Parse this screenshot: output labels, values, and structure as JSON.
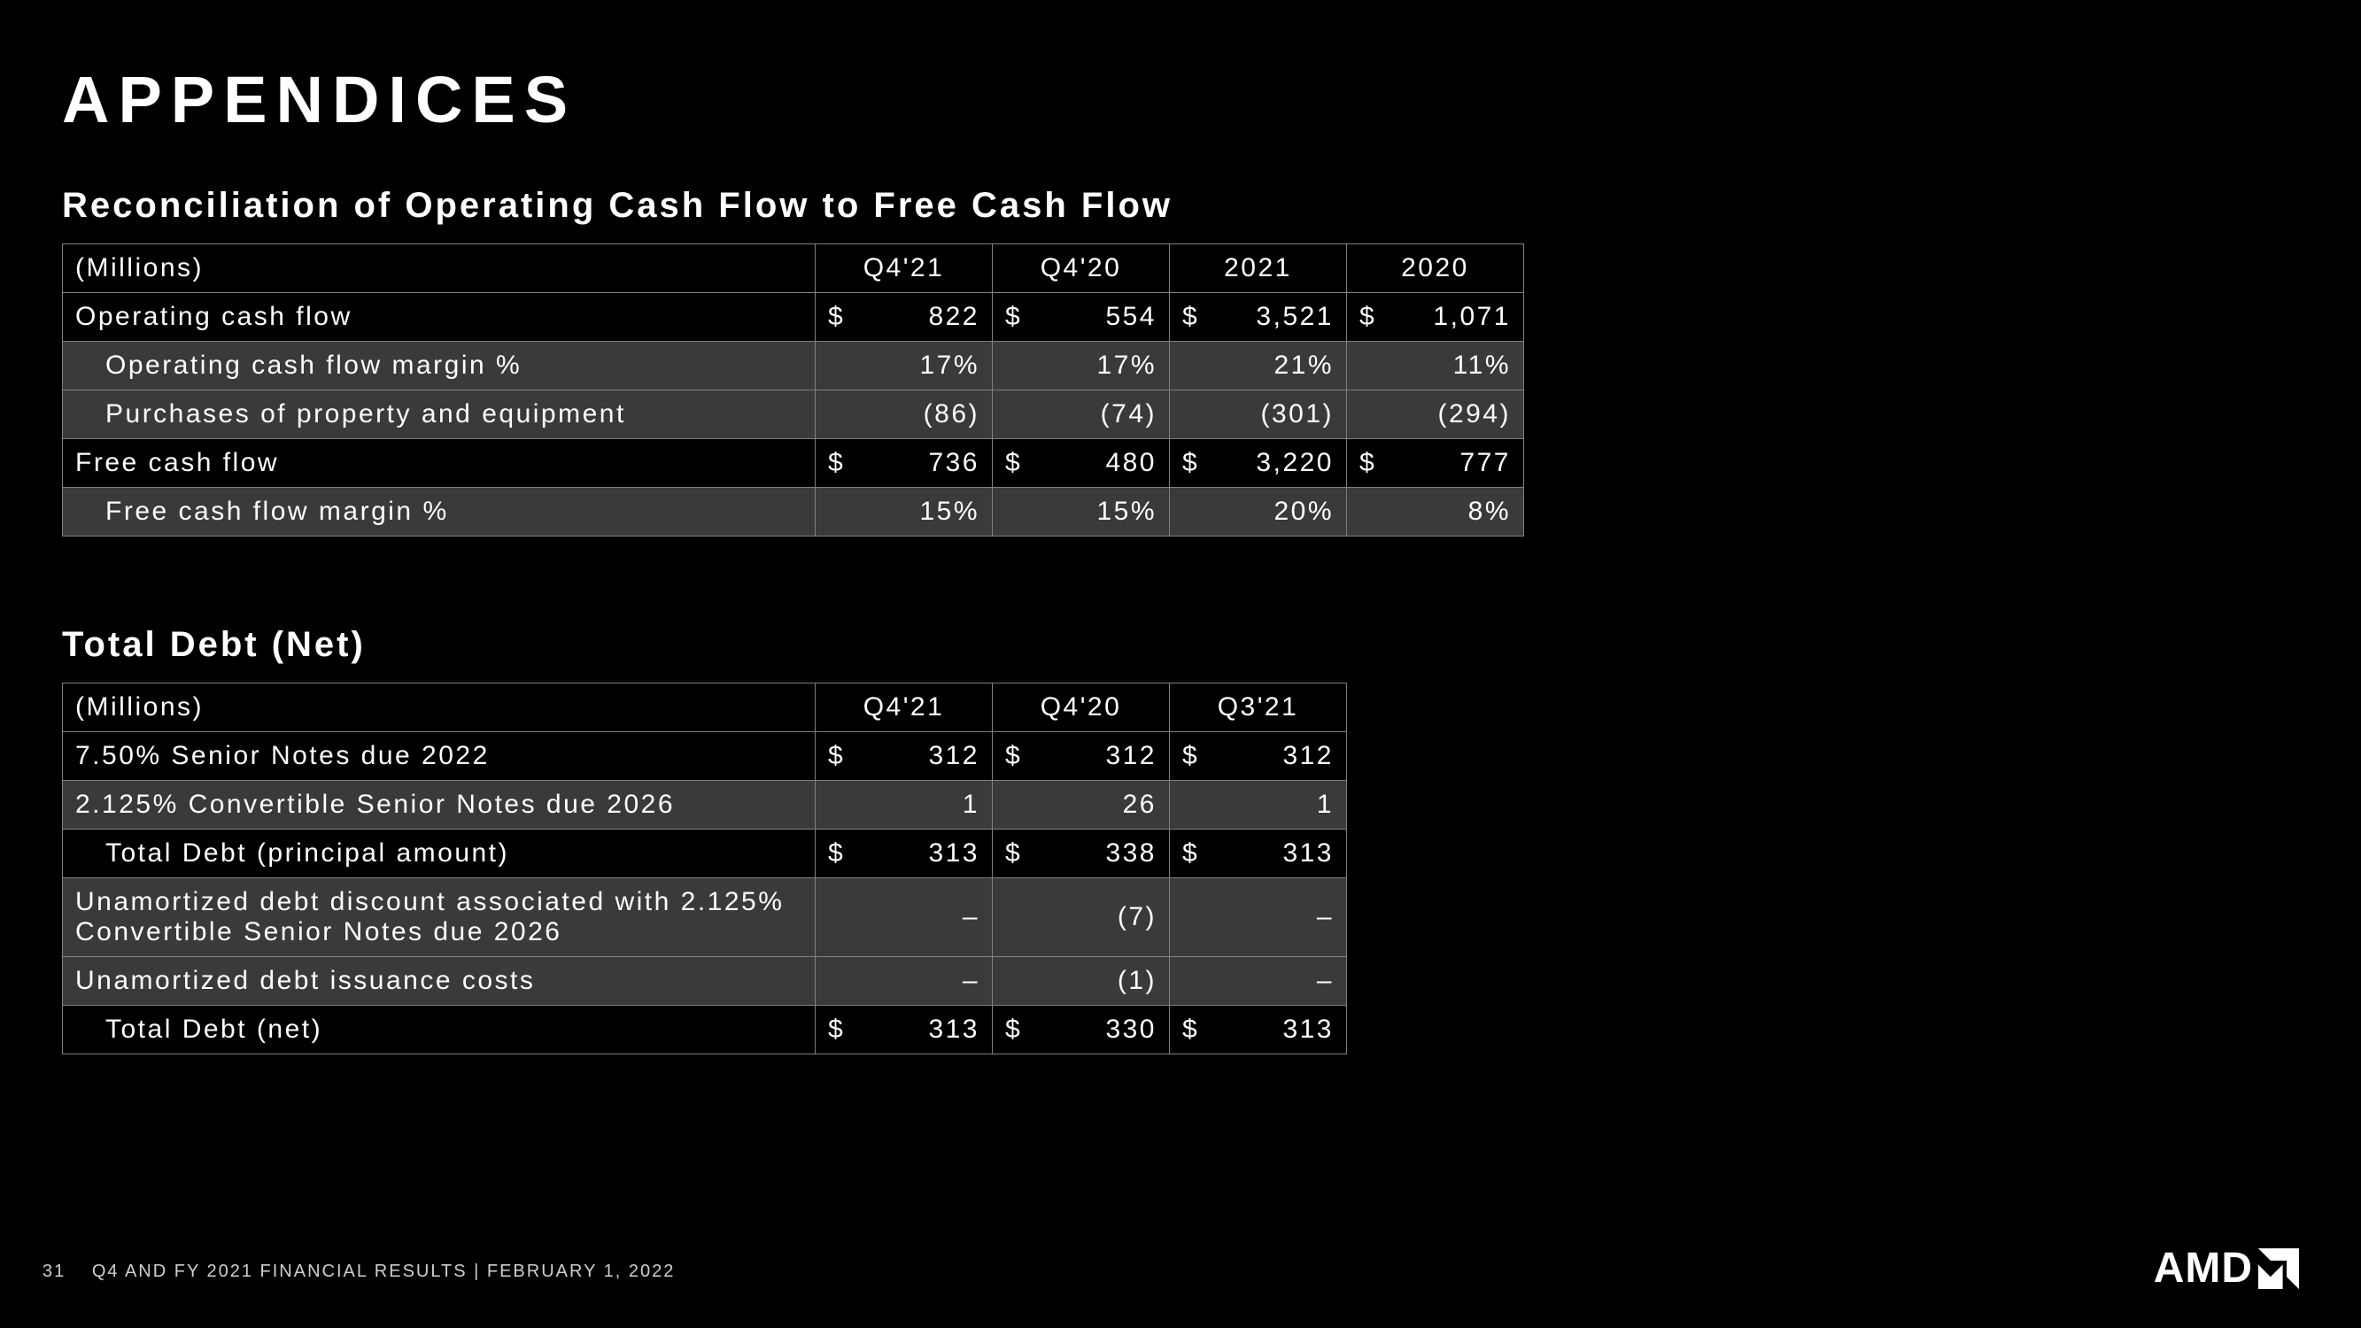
{
  "colors": {
    "background": "#000000",
    "text": "#ffffff",
    "border": "#808080",
    "shaded_row": "#3a3a3a",
    "footer_text": "#cfcfcf"
  },
  "title": "APPENDICES",
  "table1": {
    "title": "Reconciliation of Operating Cash Flow to Free Cash Flow",
    "header_label": "(Millions)",
    "columns": [
      "Q4'21",
      "Q4'20",
      "2021",
      "2020"
    ],
    "rows": [
      {
        "label": "Operating cash flow",
        "indent": 0,
        "shaded": false,
        "cells": [
          {
            "sym": "$",
            "val": "822"
          },
          {
            "sym": "$",
            "val": "554"
          },
          {
            "sym": "$",
            "val": "3,521"
          },
          {
            "sym": "$",
            "val": "1,071"
          }
        ]
      },
      {
        "label": "Operating cash flow margin %",
        "indent": 1,
        "shaded": true,
        "cells": [
          {
            "sym": "",
            "val": "17%"
          },
          {
            "sym": "",
            "val": "17%"
          },
          {
            "sym": "",
            "val": "21%"
          },
          {
            "sym": "",
            "val": "11%"
          }
        ]
      },
      {
        "label": "Purchases of property and equipment",
        "indent": 1,
        "shaded": true,
        "cells": [
          {
            "sym": "",
            "val": "(86)"
          },
          {
            "sym": "",
            "val": "(74)"
          },
          {
            "sym": "",
            "val": "(301)"
          },
          {
            "sym": "",
            "val": "(294)"
          }
        ]
      },
      {
        "label": "Free cash flow",
        "indent": 0,
        "shaded": false,
        "cells": [
          {
            "sym": "$",
            "val": "736"
          },
          {
            "sym": "$",
            "val": "480"
          },
          {
            "sym": "$",
            "val": "3,220"
          },
          {
            "sym": "$",
            "val": "777"
          }
        ]
      },
      {
        "label": "Free cash flow margin %",
        "indent": 1,
        "shaded": true,
        "cells": [
          {
            "sym": "",
            "val": "15%"
          },
          {
            "sym": "",
            "val": "15%"
          },
          {
            "sym": "",
            "val": "20%"
          },
          {
            "sym": "",
            "val": "8%"
          }
        ]
      }
    ]
  },
  "table2": {
    "title": "Total Debt (Net)",
    "header_label": "(Millions)",
    "columns": [
      "Q4'21",
      "Q4'20",
      "Q3'21"
    ],
    "rows": [
      {
        "label": "7.50% Senior Notes due 2022",
        "indent": 0,
        "shaded": false,
        "cells": [
          {
            "sym": "$",
            "val": "312"
          },
          {
            "sym": "$",
            "val": "312"
          },
          {
            "sym": "$",
            "val": "312"
          }
        ]
      },
      {
        "label": "2.125% Convertible Senior Notes due 2026",
        "indent": 0,
        "shaded": true,
        "cells": [
          {
            "sym": "",
            "val": "1"
          },
          {
            "sym": "",
            "val": "26"
          },
          {
            "sym": "",
            "val": "1"
          }
        ]
      },
      {
        "label": "Total Debt (principal amount)",
        "indent": 1,
        "shaded": false,
        "cells": [
          {
            "sym": "$",
            "val": "313"
          },
          {
            "sym": "$",
            "val": "338"
          },
          {
            "sym": "$",
            "val": "313"
          }
        ]
      },
      {
        "label": "Unamortized debt discount associated with 2.125% Convertible Senior Notes due 2026",
        "indent": 0,
        "shaded": true,
        "cells": [
          {
            "sym": "",
            "val": "–"
          },
          {
            "sym": "",
            "val": "(7)"
          },
          {
            "sym": "",
            "val": "–"
          }
        ]
      },
      {
        "label": "Unamortized debt issuance costs",
        "indent": 0,
        "shaded": true,
        "cells": [
          {
            "sym": "",
            "val": "–"
          },
          {
            "sym": "",
            "val": "(1)"
          },
          {
            "sym": "",
            "val": "–"
          }
        ]
      },
      {
        "label": "Total Debt (net)",
        "indent": 1,
        "shaded": false,
        "cells": [
          {
            "sym": "$",
            "val": "313"
          },
          {
            "sym": "$",
            "val": "330"
          },
          {
            "sym": "$",
            "val": "313"
          }
        ]
      }
    ]
  },
  "footer": {
    "page_number": "31",
    "text": "Q4 AND FY 2021 FINANCIAL RESULTS   |   FEBRUARY 1, 2022"
  },
  "logo": {
    "text": "AMD"
  }
}
